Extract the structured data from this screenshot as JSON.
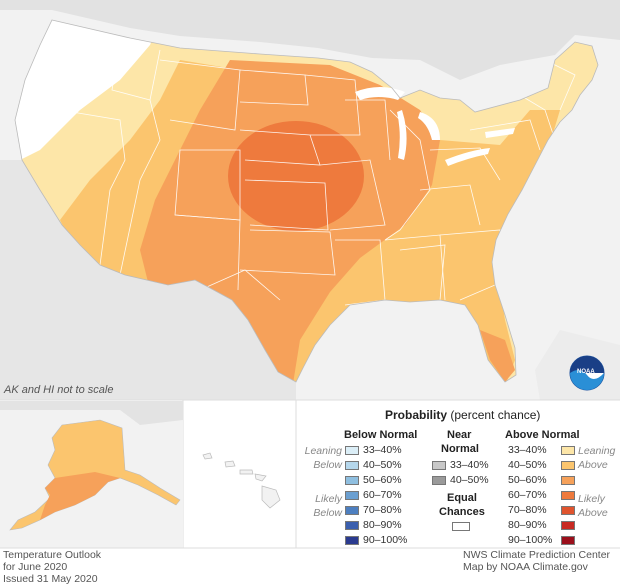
{
  "map": {
    "scale_note": "AK and HI not to scale"
  },
  "legend": {
    "title_bold": "Probability",
    "title_rest": "(percent chance)",
    "below_header": "Below Normal",
    "near_header_line1": "Near",
    "near_header_line2": "Normal",
    "above_header": "Above Normal",
    "leaning_below_1": "Leaning",
    "leaning_below_2": "Below",
    "likely_below_1": "Likely",
    "likely_below_2": "Below",
    "leaning_above_1": "Leaning",
    "leaning_above_2": "Above",
    "likely_above_1": "Likely",
    "likely_above_2": "Above",
    "equal_chances_1": "Equal",
    "equal_chances_2": "Chances",
    "below_ranges": [
      "33–40%",
      "40–50%",
      "50–60%",
      "60–70%",
      "70–80%",
      "80–90%",
      "90–100%"
    ],
    "below_colors": [
      "#dbeef7",
      "#b5d7ec",
      "#8fbfe0",
      "#6b9fd0",
      "#4d7fc0",
      "#3b5fae",
      "#2a3a8f"
    ],
    "near_ranges": [
      "33–40%",
      "40–50%"
    ],
    "near_colors": [
      "#c8c8c8",
      "#9a9a9a"
    ],
    "above_ranges": [
      "33–40%",
      "40–50%",
      "50–60%",
      "60–70%",
      "70–80%",
      "80–90%",
      "90–100%"
    ],
    "above_colors": [
      "#fde6a8",
      "#fbc56e",
      "#f6a15a",
      "#ee7a3d",
      "#e0542e",
      "#c82a22",
      "#9b0f1b"
    ]
  },
  "footer": {
    "left_line1": "Temperature Outlook",
    "left_line2": "for June 2020",
    "left_line3": "Issued 31 May 2020",
    "right_line1": "NWS Climate Prediction Center",
    "right_line2": "Map by NOAA Climate.gov"
  },
  "logo": {
    "text": "NOAA"
  }
}
